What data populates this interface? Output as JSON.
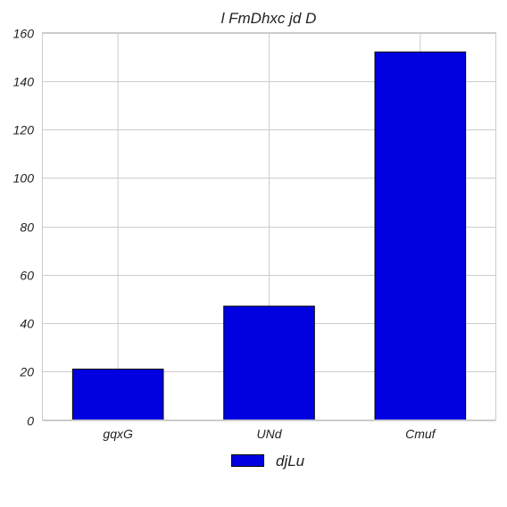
{
  "chart_data": {
    "type": "bar",
    "title": "l FmDhxc jd D",
    "xlabel": "",
    "ylabel": "",
    "categories": [
      "gqxG",
      "UNd",
      "Cmuf"
    ],
    "series": [
      {
        "name": "djLu",
        "values": [
          21,
          47,
          152
        ],
        "color": "#0000e0"
      }
    ],
    "ylim": [
      0,
      160
    ],
    "yticks": [
      0,
      20,
      40,
      60,
      80,
      100,
      120,
      140,
      160
    ],
    "grid": true,
    "legend_position": "bottom-center"
  }
}
